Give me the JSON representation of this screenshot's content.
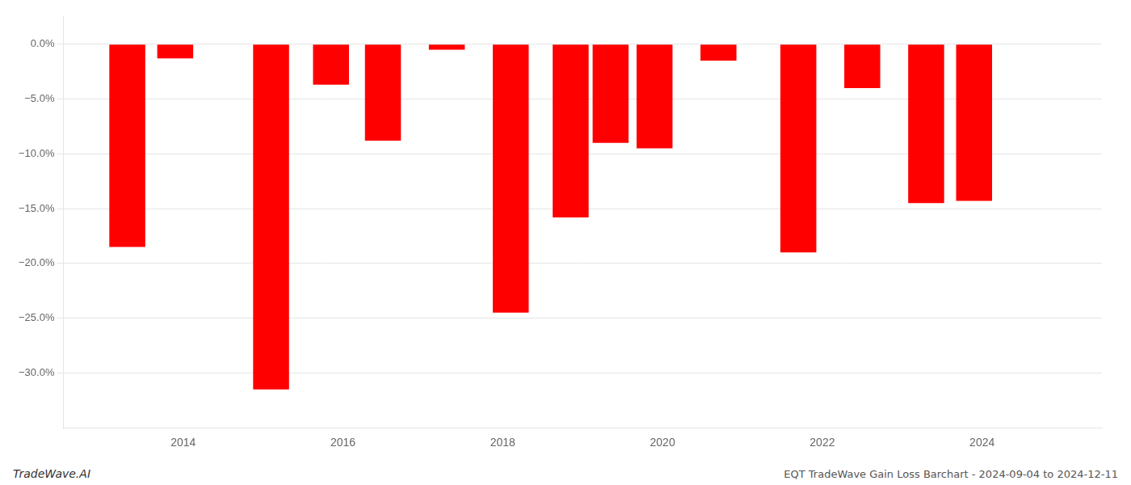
{
  "chart_data": {
    "type": "bar",
    "title": "EQT TradeWave Gain Loss Barchart - 2024-09-04 to 2024-12-11",
    "annotations": [
      "TradeWave.AI"
    ],
    "x": [
      2013.3,
      2013.9,
      2015.1,
      2015.85,
      2016.5,
      2017.3,
      2018.1,
      2018.85,
      2019.35,
      2019.9,
      2020.7,
      2021.7,
      2022.5,
      2023.3,
      2023.9,
      2024.5
    ],
    "values": [
      -18.5,
      -1.3,
      -31.5,
      -3.7,
      -8.8,
      -0.5,
      -24.5,
      -15.8,
      -9.0,
      -9.5,
      -1.5,
      -19.0,
      -4.0,
      -14.5,
      -14.3,
      0.0
    ],
    "color": "#ff0000",
    "xlim": [
      2012.5,
      2025.5
    ],
    "xticks": [
      2014,
      2016,
      2018,
      2020,
      2022,
      2024
    ],
    "ylim": [
      -35,
      2.5
    ],
    "yticks": [
      {
        "value": 0,
        "label": "0.0%"
      },
      {
        "value": -5,
        "label": "−5.0%"
      },
      {
        "value": -10,
        "label": "−10.0%"
      },
      {
        "value": -15,
        "label": "−15.0%"
      },
      {
        "value": -20,
        "label": "−20.0%"
      },
      {
        "value": -25,
        "label": "−25.0%"
      },
      {
        "value": -30,
        "label": "−30.0%"
      }
    ],
    "grid": true
  }
}
